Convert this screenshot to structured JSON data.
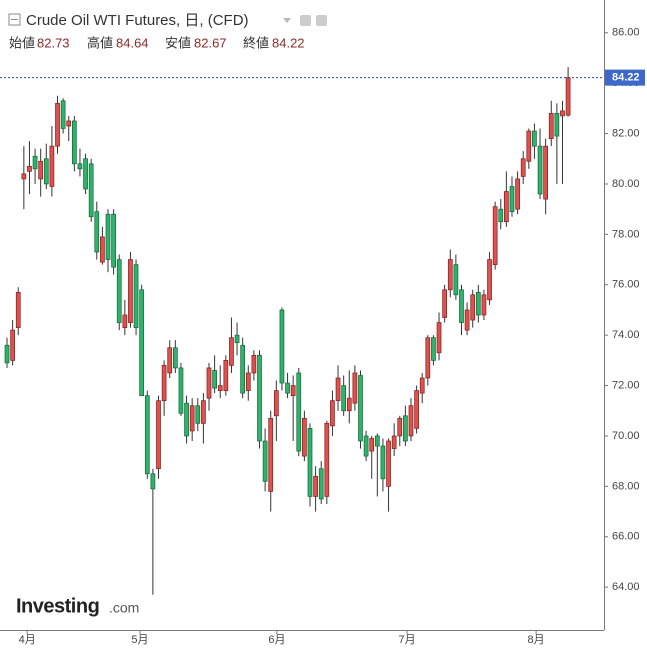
{
  "chart_data": {
    "type": "candlestick",
    "title": "Crude Oil WTI Futures, 日, (CFD)",
    "ohlc_labels": {
      "open": "始値",
      "high": "高値",
      "low": "安値",
      "close": "終値"
    },
    "ohlc_values": {
      "open": 82.73,
      "high": 84.64,
      "low": 82.67,
      "close": 84.22
    },
    "last_price": {
      "value": 84.22,
      "label": "84.22"
    },
    "logo": {
      "main": "Investing",
      "suffix": ".com"
    },
    "up_color": "#e0504c",
    "down_color": "#2db36a",
    "ylim": [
      62.3,
      87.3
    ],
    "yticks": [
      {
        "value": 64,
        "label": "64.00"
      },
      {
        "value": 66,
        "label": "66.00"
      },
      {
        "value": 68,
        "label": "68.00"
      },
      {
        "value": 70,
        "label": "70.00"
      },
      {
        "value": 72,
        "label": "72.00"
      },
      {
        "value": 74,
        "label": "74.00"
      },
      {
        "value": 76,
        "label": "76.00"
      },
      {
        "value": 78,
        "label": "78.00"
      },
      {
        "value": 80,
        "label": "80.00"
      },
      {
        "value": 82,
        "label": "82.00"
      },
      {
        "value": 84,
        "label": "84.00"
      },
      {
        "value": 86,
        "label": "86.00"
      }
    ],
    "xlim": [
      -1.25,
      106.4
    ],
    "xticks": [
      {
        "value": 3.6,
        "label": "4月"
      },
      {
        "value": 23.7,
        "label": "5月"
      },
      {
        "value": 48.1,
        "label": "6月"
      },
      {
        "value": 71.3,
        "label": "7月"
      },
      {
        "value": 94.3,
        "label": "8月"
      }
    ],
    "open": [
      73.6,
      73.0,
      74.3,
      80.2,
      80.5,
      81.1,
      80.2,
      81.0,
      79.9,
      81.5,
      83.3,
      82.3,
      82.5,
      80.8,
      81.0,
      80.8,
      78.9,
      76.9,
      78.8,
      78.8,
      77.0,
      74.3,
      74.5,
      76.8,
      75.8,
      71.6,
      68.5,
      68.7,
      71.4,
      72.5,
      73.5,
      72.7,
      71.3,
      70.2,
      71.2,
      70.5,
      71.5,
      72.6,
      71.8,
      71.8,
      72.8,
      74.0,
      73.6,
      71.8,
      72.5,
      73.2,
      69.8,
      67.8,
      70.8,
      75.0,
      72.1,
      71.6,
      72.5,
      69.2,
      70.3,
      67.6,
      68.7,
      67.6,
      70.4,
      71.4,
      72.0,
      71.0,
      71.3,
      72.4,
      70.0,
      69.4,
      70.0,
      69.6,
      68.0,
      69.5,
      70.0,
      70.8,
      70.0,
      70.3,
      71.7,
      72.3,
      73.9,
      73.3,
      74.7,
      75.8,
      76.8,
      75.8,
      74.2,
      74.6,
      75.7,
      74.8,
      75.4,
      76.8,
      79.0,
      78.5,
      79.9,
      79.0,
      80.3,
      80.9,
      82.1,
      81.5,
      79.4,
      81.8,
      82.8,
      82.7,
      82.73
    ],
    "high": [
      73.9,
      74.6,
      75.9,
      81.5,
      81.7,
      81.4,
      81.4,
      81.6,
      82.3,
      83.5,
      83.4,
      82.7,
      82.7,
      81.4,
      81.2,
      81.0,
      79.3,
      78.3,
      79.0,
      79.0,
      77.2,
      75.4,
      77.3,
      77.0,
      76.0,
      71.8,
      68.7,
      71.6,
      73.0,
      73.8,
      73.8,
      72.9,
      71.6,
      71.5,
      71.5,
      71.7,
      72.9,
      73.2,
      72.8,
      73.2,
      74.7,
      74.5,
      73.9,
      72.8,
      73.4,
      73.4,
      70.3,
      71.0,
      72.2,
      75.1,
      72.5,
      72.4,
      72.7,
      71.0,
      70.5,
      68.8,
      69.0,
      70.6,
      71.8,
      72.8,
      72.4,
      72.6,
      72.8,
      72.6,
      70.2,
      70.0,
      70.1,
      69.9,
      69.9,
      70.5,
      70.8,
      71.2,
      71.5,
      72.0,
      72.5,
      74.0,
      74.0,
      74.9,
      76.0,
      77.4,
      77.2,
      76.0,
      75.3,
      75.8,
      76.0,
      75.8,
      77.3,
      79.3,
      79.4,
      80.5,
      80.3,
      80.5,
      81.3,
      82.2,
      82.4,
      82.2,
      81.8,
      83.3,
      83.2,
      83.3,
      84.64
    ],
    "low": [
      72.7,
      72.8,
      74.0,
      79.0,
      79.6,
      80.0,
      79.5,
      79.8,
      79.5,
      81.2,
      82.0,
      81.7,
      80.5,
      80.3,
      79.6,
      78.5,
      77.0,
      76.8,
      76.5,
      76.4,
      74.2,
      74.0,
      74.3,
      74.0,
      71.6,
      68.3,
      63.7,
      68.3,
      70.8,
      72.3,
      72.5,
      70.8,
      69.7,
      69.8,
      70.2,
      69.7,
      71.0,
      71.7,
      71.5,
      71.6,
      72.5,
      73.2,
      71.5,
      71.4,
      72.2,
      69.5,
      67.8,
      67.0,
      69.8,
      71.8,
      71.5,
      69.8,
      69.2,
      69.0,
      67.2,
      67.0,
      67.3,
      67.3,
      70.0,
      71.0,
      70.8,
      70.5,
      71.0,
      69.5,
      69.0,
      68.3,
      67.6,
      67.8,
      67.0,
      69.2,
      69.6,
      69.6,
      69.8,
      70.1,
      71.3,
      72.0,
      72.8,
      73.0,
      74.5,
      75.5,
      75.4,
      74.0,
      74.0,
      74.3,
      74.5,
      74.6,
      75.2,
      76.6,
      78.2,
      78.3,
      78.7,
      78.8,
      80.0,
      80.6,
      81.0,
      79.4,
      78.8,
      81.5,
      80.0,
      80.0,
      82.67
    ],
    "close": [
      72.9,
      74.2,
      75.7,
      80.4,
      80.7,
      80.6,
      80.9,
      80.0,
      81.5,
      83.2,
      82.2,
      82.5,
      80.8,
      80.6,
      79.8,
      78.7,
      77.3,
      77.9,
      77.0,
      76.7,
      74.5,
      74.8,
      77.0,
      74.3,
      71.6,
      68.5,
      67.9,
      71.4,
      72.8,
      73.5,
      72.7,
      70.9,
      70.0,
      71.2,
      70.5,
      71.4,
      72.7,
      71.9,
      72.0,
      73.0,
      73.9,
      73.7,
      71.7,
      72.5,
      73.2,
      69.8,
      68.2,
      70.7,
      71.8,
      72.1,
      71.7,
      72.0,
      69.4,
      70.7,
      67.6,
      68.4,
      67.5,
      70.5,
      71.4,
      72.3,
      71.0,
      71.5,
      72.5,
      69.8,
      69.2,
      69.9,
      69.6,
      68.3,
      69.8,
      70.0,
      70.7,
      69.8,
      71.2,
      71.8,
      72.3,
      73.9,
      73.0,
      74.5,
      75.8,
      77.0,
      75.6,
      74.5,
      75.0,
      75.6,
      74.8,
      75.6,
      77.0,
      79.1,
      78.5,
      79.7,
      78.9,
      80.2,
      81.0,
      82.1,
      81.5,
      79.6,
      81.5,
      82.8,
      81.9,
      82.9,
      84.22
    ]
  }
}
